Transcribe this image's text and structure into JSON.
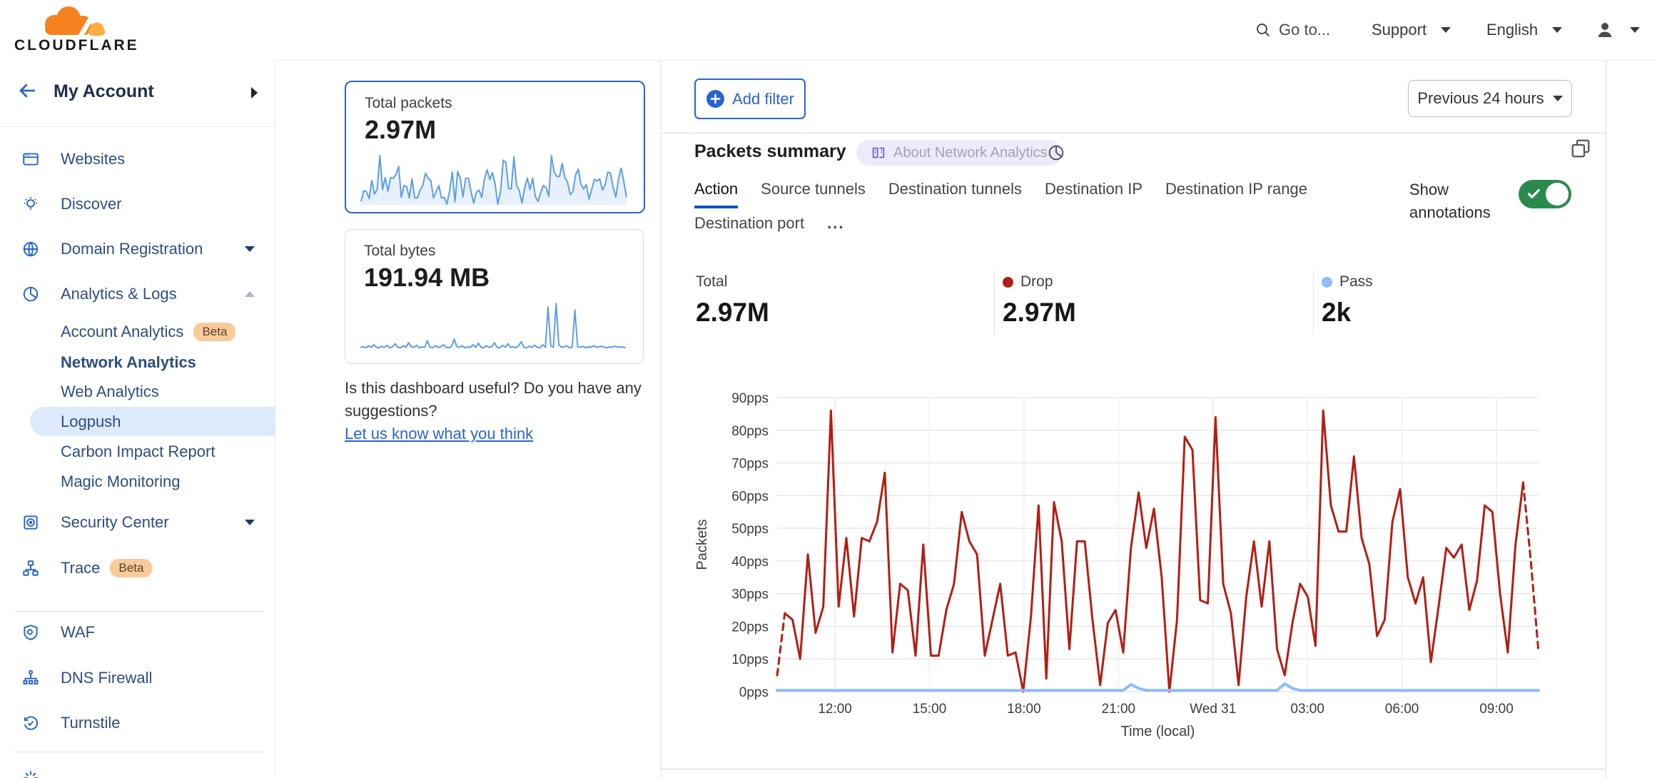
{
  "header": {
    "logo_text": "CLOUDFLARE",
    "search_label": "Go to...",
    "support_label": "Support",
    "language_label": "English"
  },
  "sidebar": {
    "account_label": "My Account",
    "items": [
      {
        "label": "Websites",
        "icon": "websites-icon"
      },
      {
        "label": "Discover",
        "icon": "discover-icon"
      },
      {
        "label": "Domain Registration",
        "icon": "globe-icon",
        "caret": "down"
      },
      {
        "label": "Analytics & Logs",
        "icon": "pie-chart-icon",
        "caret": "up"
      },
      {
        "label": "Account Analytics",
        "badge": "Beta"
      },
      {
        "label": "Network Analytics",
        "selected": true
      },
      {
        "label": "Web Analytics"
      },
      {
        "label": "Logpush"
      },
      {
        "label": "Carbon Impact Report"
      },
      {
        "label": "Magic Monitoring"
      },
      {
        "label": "Security Center",
        "icon": "safe-icon",
        "caret": "down"
      },
      {
        "label": "Trace",
        "icon": "trace-icon",
        "badge": "Beta"
      },
      {
        "label": "WAF",
        "icon": "shield-gear-icon"
      },
      {
        "label": "DNS Firewall",
        "icon": "hierarchy-icon"
      },
      {
        "label": "Turnstile",
        "icon": "refresh-check-icon"
      }
    ]
  },
  "cards": {
    "packets": {
      "title": "Total packets",
      "value": "2.97M",
      "spark_color": "#5f9de5",
      "selected": true
    },
    "bytes": {
      "title": "Total bytes",
      "value": "191.94 MB",
      "spark_color": "#5f9de5",
      "spark_values": [
        9,
        10,
        8,
        12,
        9,
        14,
        9,
        8,
        11,
        9,
        13,
        8,
        10,
        16,
        9,
        8,
        12,
        9,
        18,
        10,
        9,
        13,
        8,
        10,
        9,
        22,
        9,
        8,
        12,
        9,
        10,
        14,
        9,
        8,
        11,
        25,
        10,
        9,
        12,
        8,
        10,
        9,
        14,
        9,
        17,
        9,
        8,
        12,
        9,
        10,
        18,
        9,
        8,
        13,
        9,
        16,
        9,
        10,
        8,
        12,
        20,
        9,
        8,
        11,
        9,
        13,
        9,
        8,
        14,
        9,
        88,
        12,
        9,
        95,
        14,
        9,
        10,
        12,
        8,
        9,
        82,
        10,
        9,
        11,
        8,
        10,
        9,
        12,
        9,
        10,
        11,
        9,
        8,
        10,
        9,
        11,
        9,
        10,
        9,
        8
      ]
    }
  },
  "feedback": {
    "question": "Is this dashboard useful? Do you have any suggestions?",
    "link": "Let us know what you think"
  },
  "toolbar": {
    "add_filter": "Add filter",
    "time_range": "Previous 24 hours"
  },
  "panel": {
    "title": "Packets summary",
    "badge": "About Network Analytics",
    "tabs": [
      "Action",
      "Source tunnels",
      "Destination tunnels",
      "Destination IP",
      "Destination IP range",
      "Destination port"
    ],
    "active_tab": "Action",
    "more_label": "...",
    "show_annotations": "Show annotations",
    "toggle_state": "on",
    "toggle_color": "#2a8a4e",
    "stats": [
      {
        "label": "Total",
        "value": "2.97M"
      },
      {
        "label": "Drop",
        "value": "2.97M",
        "dot_color": "#b21e15"
      },
      {
        "label": "Pass",
        "value": "2k",
        "dot_color": "#8fbcf7"
      }
    ]
  },
  "chart_data": {
    "type": "line",
    "title": "Packets summary",
    "ylabel": "Packets",
    "xlabel": "Time (local)",
    "y_unit": "pps",
    "ylim": [
      0,
      90
    ],
    "ytick_step": 10,
    "grid": true,
    "xticks": {
      "labels": [
        "12:00",
        "15:00",
        "18:00",
        "21:00",
        "Wed 31",
        "03:00",
        "06:00",
        "09:00"
      ],
      "first_frac": 0.076,
      "step_frac": 0.1241
    },
    "series": [
      {
        "name": "Drop",
        "color": "#b21e15",
        "width": 3,
        "dash_head": 1,
        "dash_tail": 2,
        "values": [
          5,
          24,
          22,
          10,
          42,
          18,
          26,
          86,
          26,
          47,
          23,
          47,
          46,
          52,
          67,
          12,
          33,
          31,
          11,
          45,
          11,
          11,
          25,
          33,
          55,
          46,
          42,
          11,
          22,
          33,
          11,
          12,
          0,
          23,
          57,
          4,
          58,
          46,
          13,
          46,
          46,
          22,
          2,
          21,
          25,
          12,
          44,
          61,
          44,
          56,
          35,
          0,
          22,
          78,
          74,
          28,
          27,
          84,
          33,
          24,
          2,
          29,
          46,
          26,
          46,
          13,
          5,
          21,
          33,
          29,
          14,
          86,
          57,
          49,
          49,
          72,
          47,
          39,
          17,
          22,
          52,
          62,
          35,
          27,
          35,
          9,
          26,
          44,
          41,
          45,
          25,
          34,
          57,
          55,
          30,
          12,
          45,
          64,
          40,
          12
        ]
      },
      {
        "name": "Pass",
        "color": "#8fbcf7",
        "width": 4,
        "values": [
          0.4,
          0.4,
          0.4,
          0.4,
          0.4,
          0.4,
          0.4,
          0.4,
          0.4,
          0.4,
          0.4,
          0.4,
          0.4,
          0.4,
          0.4,
          0.4,
          0.4,
          0.4,
          0.4,
          0.4,
          0.4,
          0.4,
          0.4,
          0.4,
          0.4,
          0.4,
          0.4,
          0.4,
          0.4,
          0.4,
          0.4,
          0.4,
          0.4,
          0.4,
          0.4,
          0.4,
          0.4,
          0.4,
          0.4,
          0.4,
          0.4,
          0.4,
          0.4,
          0.4,
          0.4,
          0.4,
          2.2,
          1,
          0.4,
          0.4,
          0.4,
          0.4,
          0.4,
          0.4,
          0.4,
          0.4,
          0.4,
          0.4,
          0.4,
          0.4,
          0.4,
          0.4,
          0.4,
          0.4,
          0.4,
          0.4,
          2.4,
          1,
          0.4,
          0.4,
          0.4,
          0.4,
          0.4,
          0.4,
          0.4,
          0.4,
          0.4,
          0.4,
          0.4,
          0.4,
          0.4,
          0.4,
          0.4,
          0.4,
          0.4,
          0.4,
          0.4,
          0.4,
          0.4,
          0.4,
          0.4,
          0.4,
          0.4,
          0.4,
          0.4,
          0.4,
          0.4,
          0.4,
          0.4,
          0.4
        ]
      }
    ]
  }
}
